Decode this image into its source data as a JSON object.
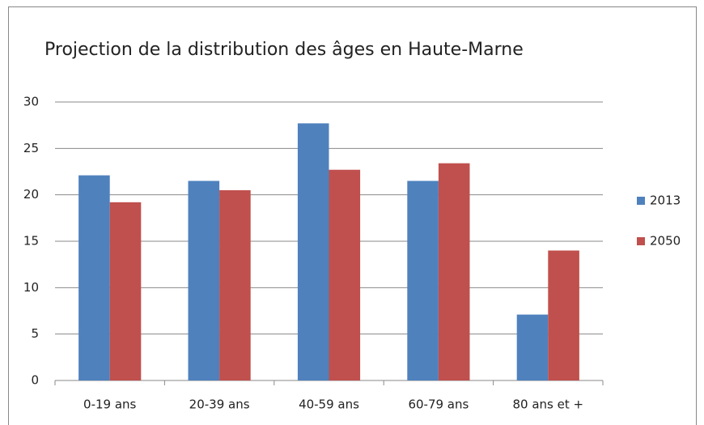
{
  "chart_data": {
    "type": "bar",
    "title": "Projection de la distribution des âges en Haute-Marne",
    "categories": [
      "0-19 ans",
      "20-39 ans",
      "40-59 ans",
      "60-79 ans",
      "80 ans et +"
    ],
    "series": [
      {
        "name": "2013",
        "color": "#4f81bd",
        "values": [
          22.1,
          21.5,
          27.7,
          21.5,
          7.1
        ]
      },
      {
        "name": "2050",
        "color": "#c0504d",
        "values": [
          19.2,
          20.5,
          22.7,
          23.4,
          14.0
        ]
      }
    ],
    "ylim": [
      0,
      30
    ],
    "yticks": [
      0,
      5,
      10,
      15,
      20,
      25,
      30
    ],
    "grid": true,
    "legend": "right"
  }
}
